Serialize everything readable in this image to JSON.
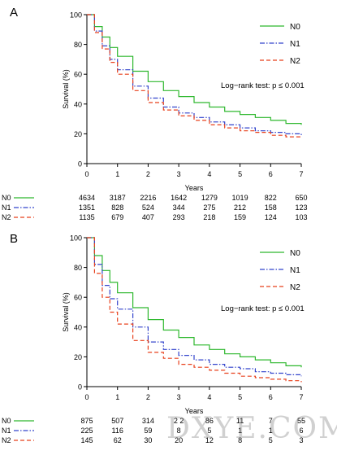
{
  "panels": [
    {
      "panel_label": "A",
      "legend": [
        "N0",
        "N1",
        "N2"
      ],
      "annotation": "Log−rank test: p ≤ 0.001",
      "risk_table": [
        {
          "label": "N0",
          "counts": [
            "4634",
            "3187",
            "2216",
            "1642",
            "1279",
            "1019",
            "822",
            "650"
          ]
        },
        {
          "label": "N1",
          "counts": [
            "1351",
            "828",
            "524",
            "344",
            "275",
            "212",
            "158",
            "123"
          ]
        },
        {
          "label": "N2",
          "counts": [
            "1135",
            "679",
            "407",
            "293",
            "218",
            "159",
            "124",
            "103"
          ]
        }
      ]
    },
    {
      "panel_label": "B",
      "legend": [
        "N0",
        "N1",
        "N2"
      ],
      "annotation": "Log−rank test: p ≤ 0.001",
      "risk_table": [
        {
          "label": "N0",
          "counts": [
            "875",
            "507",
            "314",
            "2 2",
            "86",
            "11",
            "7",
            "55"
          ]
        },
        {
          "label": "N1",
          "counts": [
            "225",
            "116",
            "59",
            "8",
            "5",
            "1",
            "1",
            "6"
          ]
        },
        {
          "label": "N2",
          "counts": [
            "145",
            "62",
            "30",
            "20",
            "12",
            "8",
            "5",
            "3"
          ]
        }
      ]
    }
  ],
  "colors": {
    "N0": "#2eb82e",
    "N1": "#3344cc",
    "N2": "#e8401c",
    "axis": "#000000"
  },
  "watermark": "DXYE.COM",
  "chart_data": [
    {
      "type": "line",
      "title": "",
      "xlabel": "Years",
      "ylabel": "Survival (%)",
      "xlim": [
        0,
        7
      ],
      "ylim": [
        0,
        100
      ],
      "xticks": [
        0,
        1,
        2,
        3,
        4,
        5,
        6,
        7
      ],
      "yticks": [
        0,
        20,
        40,
        60,
        80,
        100
      ],
      "legend_position": "top-right",
      "series": [
        {
          "name": "N0",
          "style": "solid",
          "x": [
            0,
            0.25,
            0.5,
            0.75,
            1,
            1.5,
            2,
            2.5,
            3,
            3.5,
            4,
            4.5,
            5,
            5.5,
            6,
            6.5,
            7
          ],
          "y": [
            100,
            92,
            85,
            78,
            72,
            62,
            55,
            49,
            45,
            41,
            38,
            35,
            33,
            31,
            29,
            27,
            26
          ]
        },
        {
          "name": "N1",
          "style": "dash-dot",
          "x": [
            0,
            0.25,
            0.5,
            0.75,
            1,
            1.5,
            2,
            2.5,
            3,
            3.5,
            4,
            4.5,
            5,
            5.5,
            6,
            6.5,
            7
          ],
          "y": [
            100,
            89,
            79,
            70,
            63,
            52,
            44,
            38,
            34,
            31,
            28,
            26,
            24,
            22,
            21,
            20,
            19
          ]
        },
        {
          "name": "N2",
          "style": "dashed",
          "x": [
            0,
            0.25,
            0.5,
            0.75,
            1,
            1.5,
            2,
            2.5,
            3,
            3.5,
            4,
            4.5,
            5,
            5.5,
            6,
            6.5,
            7
          ],
          "y": [
            100,
            88,
            77,
            68,
            60,
            49,
            41,
            36,
            32,
            29,
            26,
            24,
            22,
            21,
            19,
            18,
            17
          ]
        }
      ]
    },
    {
      "type": "line",
      "title": "",
      "xlabel": "Years",
      "ylabel": "Survival (%)",
      "xlim": [
        0,
        7
      ],
      "ylim": [
        0,
        100
      ],
      "xticks": [
        0,
        1,
        2,
        3,
        4,
        5,
        6,
        7
      ],
      "yticks": [
        0,
        20,
        40,
        60,
        80,
        100
      ],
      "legend_position": "top-right",
      "series": [
        {
          "name": "N0",
          "style": "solid",
          "x": [
            0,
            0.25,
            0.5,
            0.75,
            1,
            1.5,
            2,
            2.5,
            3,
            3.5,
            4,
            4.5,
            5,
            5.5,
            6,
            6.5,
            7
          ],
          "y": [
            100,
            88,
            78,
            70,
            63,
            53,
            45,
            38,
            33,
            28,
            25,
            22,
            20,
            18,
            16,
            14,
            13
          ]
        },
        {
          "name": "N1",
          "style": "dash-dot",
          "x": [
            0,
            0.25,
            0.5,
            0.75,
            1,
            1.5,
            2,
            2.5,
            3,
            3.5,
            4,
            4.5,
            5,
            5.5,
            6,
            6.5,
            7
          ],
          "y": [
            100,
            82,
            68,
            59,
            52,
            40,
            30,
            25,
            21,
            18,
            15,
            13,
            12,
            10,
            9,
            8,
            7
          ]
        },
        {
          "name": "N2",
          "style": "dashed",
          "x": [
            0,
            0.25,
            0.5,
            0.75,
            1,
            1.5,
            2,
            2.5,
            3,
            3.5,
            4,
            4.5,
            5,
            5.5,
            6,
            6.5,
            7
          ],
          "y": [
            100,
            76,
            60,
            50,
            42,
            31,
            23,
            19,
            15,
            13,
            11,
            9,
            7,
            6,
            5,
            4,
            3
          ]
        }
      ]
    }
  ]
}
